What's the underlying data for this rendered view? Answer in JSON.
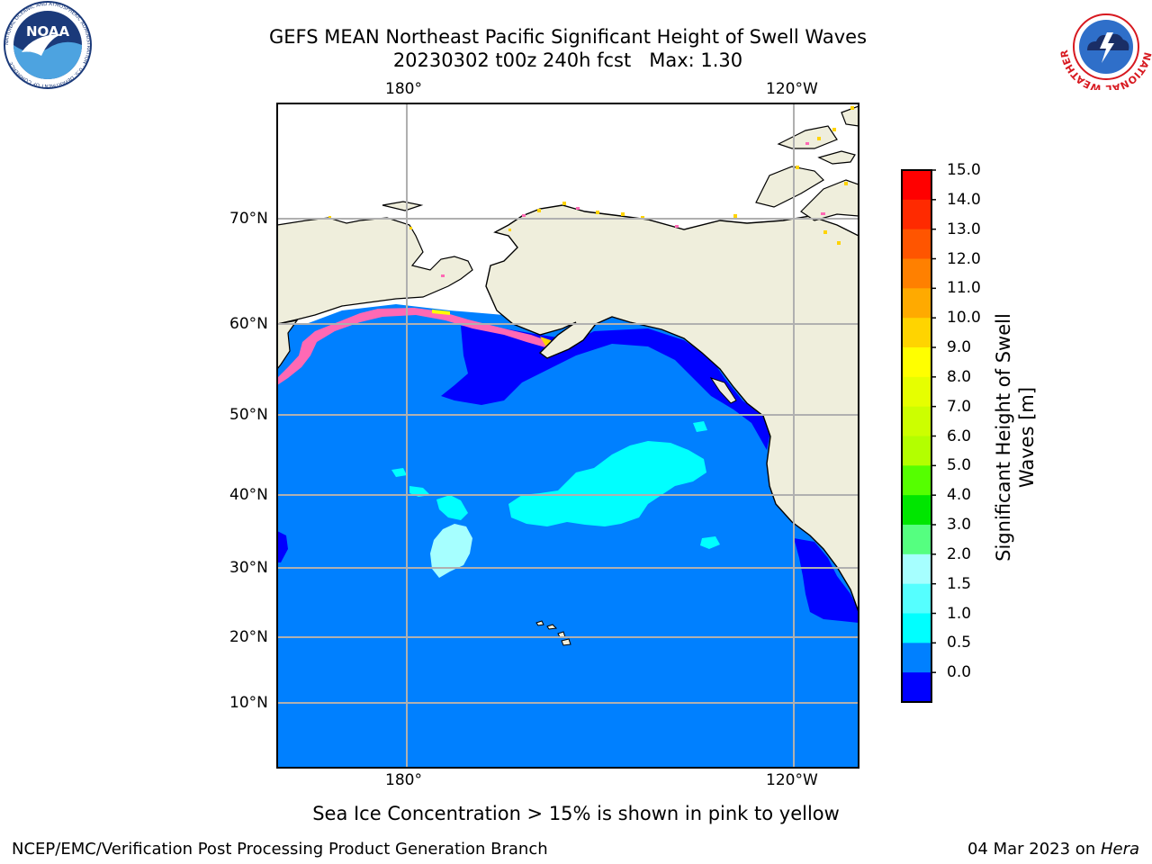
{
  "title_line1": "GEFS MEAN Northeast Pacific Significant Height of Swell Waves",
  "title_line2": "20230302 t00z 240h fcst   Max: 1.30",
  "logo_left": {
    "icon": "noaa-logo-icon",
    "text": "NOAA",
    "ring_text": "NATIONAL OCEANIC AND ATMOSPHERIC ADMINISTRATION · U.S. DEPARTMENT OF COMMERCE"
  },
  "logo_right": {
    "icon": "nws-logo-icon",
    "ring_text": "NATIONAL WEATHER SERVICE"
  },
  "map": {
    "lon_top_labels": [
      "180°",
      "120°W"
    ],
    "lon_bottom_labels": [
      "180°",
      "120°W"
    ],
    "lat_labels": [
      "70°N",
      "60°N",
      "50°N",
      "40°N",
      "30°N",
      "20°N",
      "10°N"
    ],
    "colors": {
      "ocean_open": "#0080ff",
      "ocean_low": "#0000ff",
      "swell_15_2": "#00ffff",
      "land": "#efeedc",
      "grid": "#b0b0b0",
      "ice": "#ff69b4"
    }
  },
  "colorbar": {
    "ticks": [
      "15.0",
      "14.0",
      "13.0",
      "12.0",
      "11.0",
      "10.0",
      "9.0",
      "8.0",
      "7.0",
      "6.0",
      "5.0",
      "4.0",
      "3.0",
      "2.0",
      "1.5",
      "1.0",
      "0.5",
      "0.0"
    ],
    "colors_top_to_bottom": [
      "#ff0000",
      "#ff2a00",
      "#ff5500",
      "#ff8000",
      "#ffaa00",
      "#ffd400",
      "#ffff00",
      "#e6ff00",
      "#ccff00",
      "#b3ff00",
      "#55ff00",
      "#00e600",
      "#55ff80",
      "#a6ffff",
      "#55ffff",
      "#00ffff",
      "#0080ff",
      "#0000ff"
    ],
    "label_line1": "Significant Height of Swell",
    "label_line2": "Waves [m]"
  },
  "note": "Sea Ice Concentration > 15% is shown in pink to yellow",
  "footer_left": "NCEP/EMC/Verification Post Processing Product Generation Branch",
  "footer_right_date": "04 Mar 2023 on ",
  "footer_right_machine": "Hera"
}
